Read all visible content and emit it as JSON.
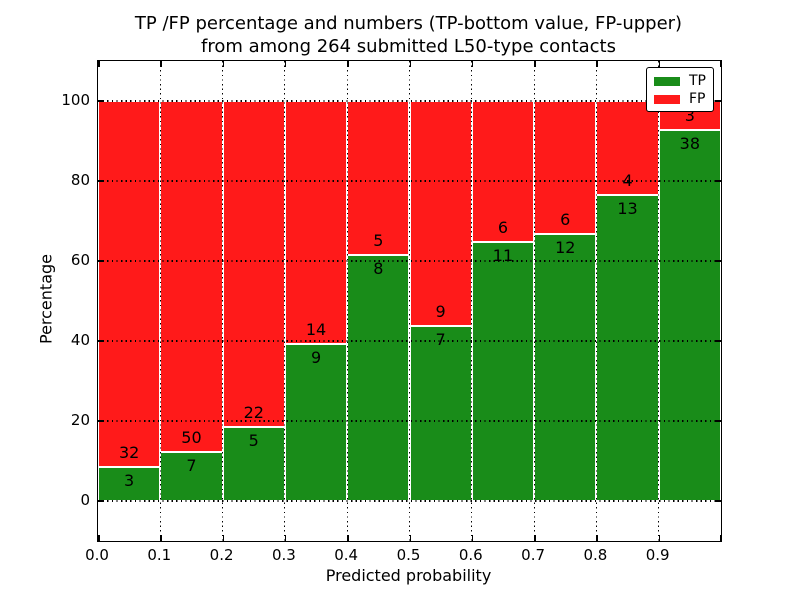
{
  "chart_data": {
    "type": "bar",
    "stacked": true,
    "normalized_to_percent": true,
    "title_lines": [
      "TP /FP percentage and numbers (TP-bottom value, FP-upper)",
      "from among 264 submitted L50-type contacts"
    ],
    "xlabel": "Predicted probability",
    "ylabel": "Percentage",
    "total_submitted_contacts": 264,
    "categories": [
      "0.0-0.1",
      "0.1-0.2",
      "0.2-0.3",
      "0.3-0.4",
      "0.4-0.5",
      "0.5-0.6",
      "0.6-0.7",
      "0.7-0.8",
      "0.8-0.9",
      "0.9-1.0"
    ],
    "x_tick_labels": [
      "0.0",
      "0.1",
      "0.2",
      "0.3",
      "0.4",
      "0.5",
      "0.6",
      "0.7",
      "0.8",
      "0.9"
    ],
    "y_tick_values": [
      0,
      20,
      40,
      60,
      80,
      100
    ],
    "xlim": [
      0.0,
      1.0
    ],
    "ylim": [
      -10,
      110
    ],
    "grid": "dotted",
    "legend_position": "upper right",
    "series": [
      {
        "name": "TP",
        "color": "#198C19",
        "counts": [
          3,
          7,
          5,
          9,
          8,
          7,
          11,
          12,
          13,
          38
        ]
      },
      {
        "name": "FP",
        "color": "#FF1A1A",
        "counts": [
          32,
          50,
          22,
          14,
          5,
          9,
          6,
          6,
          4,
          3
        ]
      }
    ]
  },
  "colors": {
    "tp_green": "#198C19",
    "fp_red": "#FF1A1A",
    "axis": "#000000",
    "background": "#ffffff",
    "bar_edge": "#ffffff"
  }
}
